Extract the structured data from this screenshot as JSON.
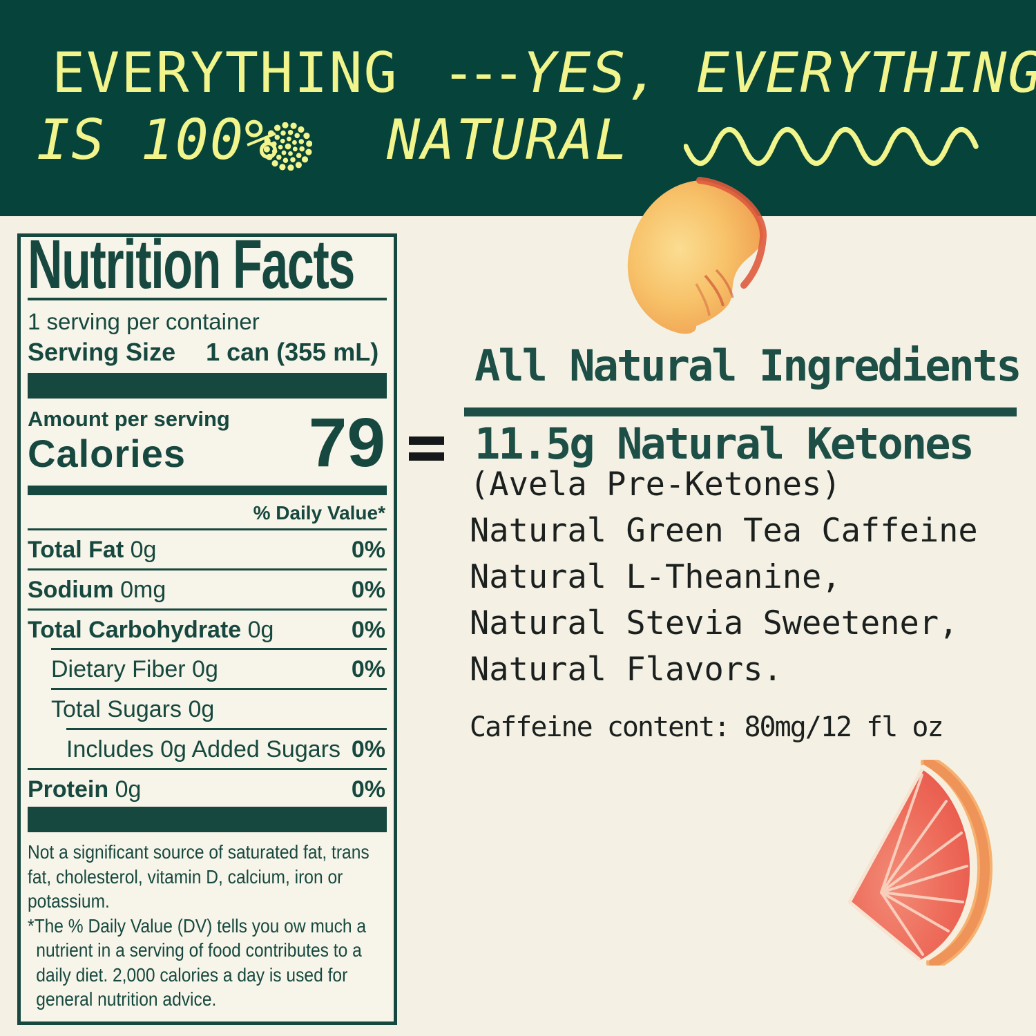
{
  "banner": {
    "line1_word": "EVERYTHING",
    "line1_dashes": "---",
    "line1_italic": "YES, EVERYTHING",
    "line2_left": "IS 100%",
    "line2_right": "NATURAL",
    "bg_color": "#05433b",
    "text_color": "#f2f48c"
  },
  "nutrition_label": {
    "title": "Nutrition Facts",
    "servings_per_container": "1 serving per container",
    "serving_size_label": "Serving Size",
    "serving_size_value": "1 can (355 mL)",
    "amount_per_serving": "Amount per serving",
    "calories_label": "Calories",
    "calories_value": "79",
    "daily_value_header": "% Daily Value*",
    "rows": [
      {
        "label": "Total Fat",
        "value": "0g",
        "pct": "0%",
        "bold": true,
        "indent": 0
      },
      {
        "label": "Sodium",
        "value": "0mg",
        "pct": "0%",
        "bold": true,
        "indent": 0
      },
      {
        "label": "Total Carbohydrate",
        "value": "0g",
        "pct": "0%",
        "bold": true,
        "indent": 0
      },
      {
        "label": "Dietary Fiber",
        "value": "0g",
        "pct": "0%",
        "bold": false,
        "indent": 1
      },
      {
        "label": "Total Sugars",
        "value": "0g",
        "pct": "",
        "bold": false,
        "indent": 1
      },
      {
        "label": "Includes 0g Added Sugars",
        "value": "",
        "pct": "0%",
        "bold": false,
        "indent": 2
      },
      {
        "label": "Protein",
        "value": "0g",
        "pct": "0%",
        "bold": true,
        "indent": 0
      }
    ],
    "footnote_1": "Not a significant source of saturated fat, trans fat, cholesterol, vitamin D, calcium, iron or potassium.",
    "footnote_2": "*The % Daily Value (DV) tells you  ow much a nutrient in a serving of food contributes to a daily diet. 2,000 calories a day is used for general nutrition advice.",
    "text_color": "#16483f"
  },
  "ingredients": {
    "equals_symbol": "=",
    "heading": "All Natural Ingredients",
    "ketones_heading": "11.5g Natural Ketones",
    "lines": [
      "(Avela Pre-Ketones)",
      "Natural Green Tea Caffeine",
      "Natural L-Theanine,",
      "Natural Stevia Sweetener,",
      "Natural Flavors."
    ],
    "caffeine_line": "Caffeine content:  80mg/12 fl oz",
    "heading_color": "#1d4f46",
    "body_color": "#1b201e"
  },
  "images": {
    "peach": "peach-slice-photo",
    "grapefruit": "grapefruit-wedge-photo"
  },
  "colors": {
    "page_background": "#f4f1e4",
    "banner_green": "#05433b",
    "banner_yellow": "#f2f48c",
    "label_teal": "#16483f"
  }
}
